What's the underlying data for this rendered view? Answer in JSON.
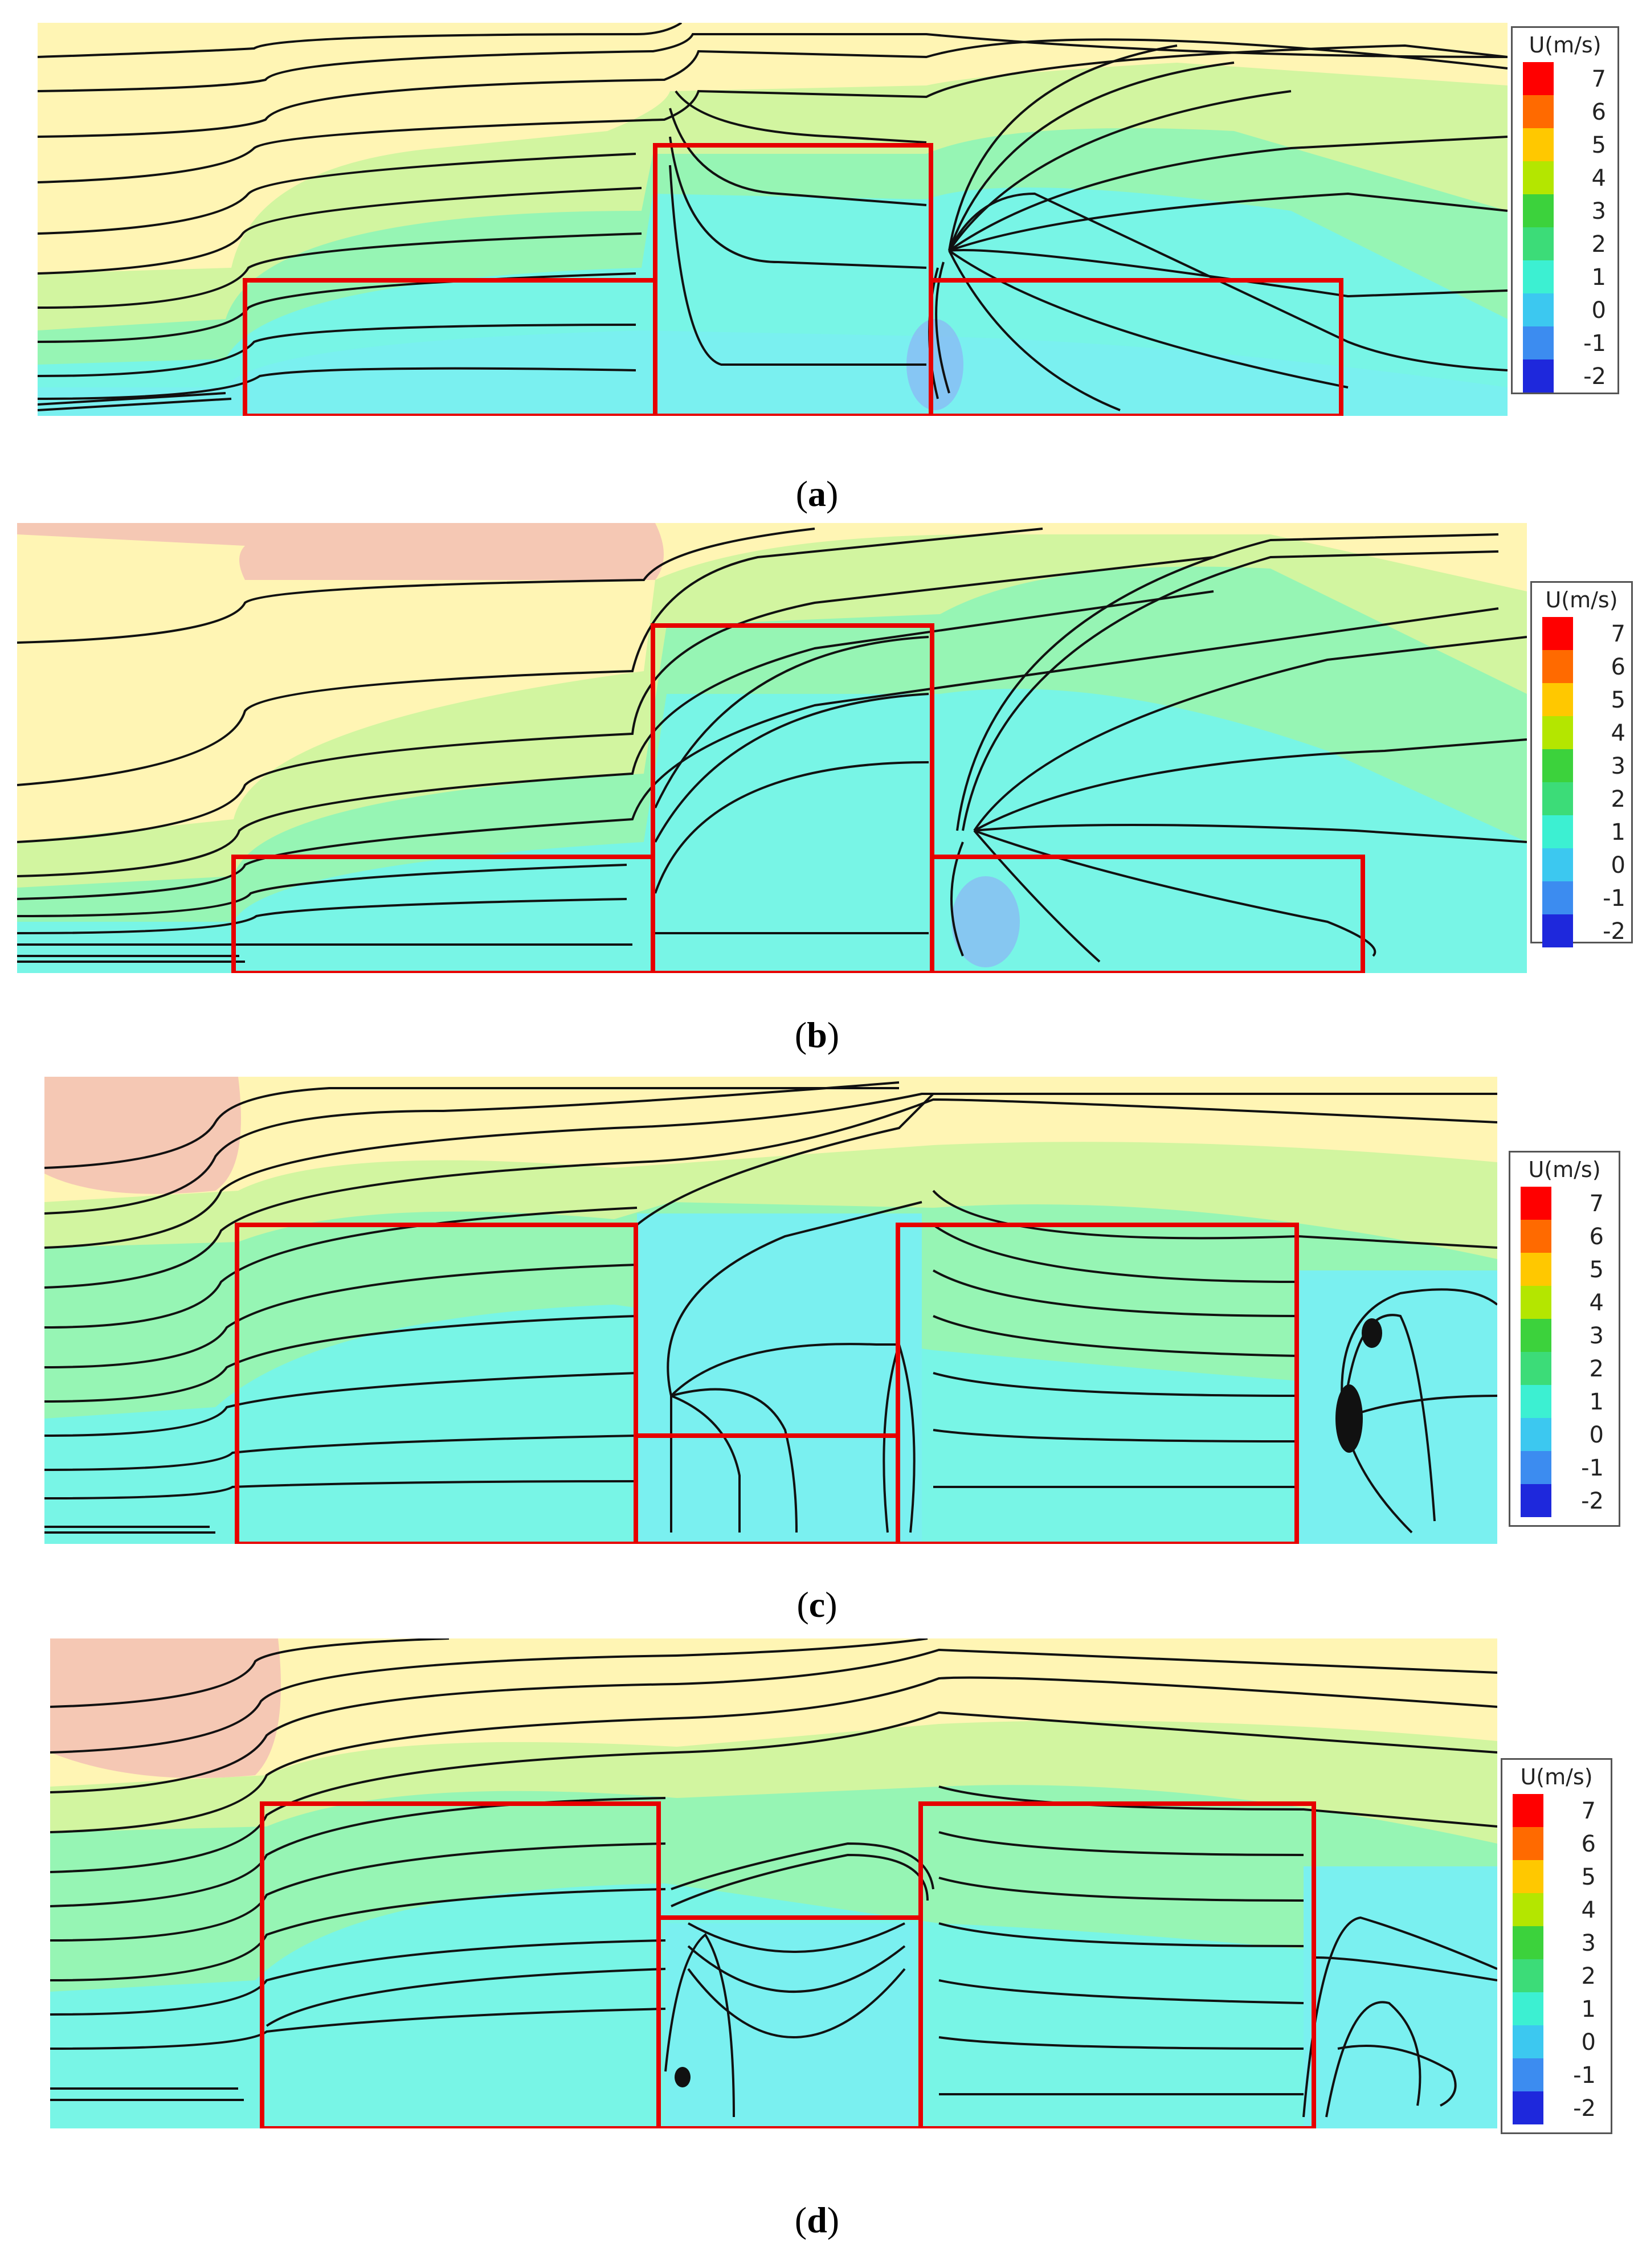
{
  "legend": {
    "title": "U(m/s)",
    "ticks": [
      "7",
      "6",
      "5",
      "4",
      "3",
      "2",
      "1",
      "0",
      "-1",
      "-2"
    ],
    "colors": [
      "#ff0000",
      "#ff6a00",
      "#ffc800",
      "#b4e600",
      "#3cd23c",
      "#3cdc78",
      "#3cf0d2",
      "#3cc8f0",
      "#3c8cf0",
      "#1e28dc"
    ]
  },
  "field_colors": {
    "high": "#f5c8b4",
    "upper": "#fff5b4",
    "mid_upper": "#d2f5a0",
    "mid": "#96f5b4",
    "low": "#78f5e6",
    "wake": "#8cb4f5",
    "box_outline": "#e60000",
    "streamline": "#111111"
  },
  "panels": [
    {
      "id": "a",
      "caption_open": "(",
      "caption_letter": "a",
      "caption_close": ")"
    },
    {
      "id": "b",
      "caption_open": "(",
      "caption_letter": "b",
      "caption_close": ")"
    },
    {
      "id": "c",
      "caption_open": "(",
      "caption_letter": "c",
      "caption_close": ")"
    },
    {
      "id": "d",
      "caption_open": "(",
      "caption_letter": "d",
      "caption_close": ")"
    }
  ]
}
